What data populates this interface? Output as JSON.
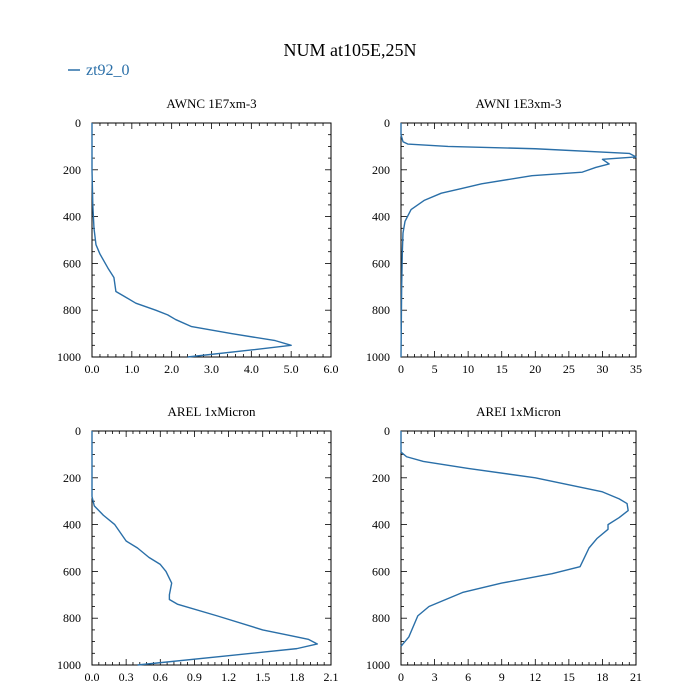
{
  "figure": {
    "title": "NUM at105E,25N",
    "legend_label": "zt92_0",
    "line_color": "#2a6fa8",
    "legend_color": "#2a6fa8"
  },
  "chart_data": [
    {
      "type": "line",
      "title": "AWNC  1E7xm-3",
      "xlabel": "",
      "ylabel": "",
      "xlim": [
        0,
        6
      ],
      "ylim": [
        1000,
        0
      ],
      "y_inverted": true,
      "xticks": [
        0,
        1,
        2,
        3,
        4,
        5,
        6
      ],
      "xtick_labels": [
        "0.0",
        "1.0",
        "2.0",
        "3.0",
        "4.0",
        "5.0",
        "6.0"
      ],
      "yticks": [
        0,
        200,
        400,
        600,
        800,
        1000
      ],
      "ytick_labels": [
        "0",
        "200",
        "400",
        "600",
        "800",
        "1000"
      ],
      "series": [
        {
          "name": "zt92_0",
          "x": [
            0,
            0,
            0.02,
            0.05,
            0.1,
            0.2,
            0.4,
            0.55,
            0.6,
            0.8,
            1.1,
            1.6,
            1.9,
            2.1,
            2.5,
            3.5,
            4.6,
            5.0,
            4.0,
            2.4
          ],
          "y": [
            0,
            200,
            350,
            450,
            520,
            560,
            620,
            660,
            720,
            740,
            770,
            800,
            820,
            840,
            870,
            900,
            930,
            950,
            970,
            1000
          ]
        }
      ]
    },
    {
      "type": "line",
      "title": "AWNI  1E3xm-3",
      "xlabel": "",
      "ylabel": "",
      "xlim": [
        0,
        35
      ],
      "ylim": [
        1000,
        0
      ],
      "y_inverted": true,
      "xticks": [
        0,
        5,
        10,
        15,
        20,
        25,
        30,
        35
      ],
      "xtick_labels": [
        "0",
        "5",
        "10",
        "15",
        "20",
        "25",
        "30",
        "35"
      ],
      "yticks": [
        0,
        200,
        400,
        600,
        800,
        1000
      ],
      "ytick_labels": [
        "0",
        "200",
        "400",
        "600",
        "800",
        "1000"
      ],
      "series": [
        {
          "name": "zt92_0",
          "x": [
            0,
            0,
            0.3,
            1,
            7,
            20,
            34,
            35,
            30,
            31,
            29,
            27,
            19.5,
            12,
            9,
            6,
            3.5,
            1.5,
            0.6,
            0.3,
            0.2,
            0.1,
            0.05,
            0
          ],
          "y": [
            0,
            50,
            80,
            90,
            100,
            110,
            130,
            145,
            155,
            175,
            190,
            210,
            225,
            260,
            280,
            300,
            330,
            370,
            420,
            470,
            550,
            700,
            850,
            1000
          ]
        }
      ]
    },
    {
      "type": "line",
      "title": "AREL  1xMicron",
      "xlabel": "",
      "ylabel": "",
      "xlim": [
        0,
        2.1
      ],
      "ylim": [
        1000,
        0
      ],
      "y_inverted": true,
      "xticks": [
        0,
        0.3,
        0.6,
        0.9,
        1.2,
        1.5,
        1.8,
        2.1
      ],
      "xtick_labels": [
        "0.0",
        "0.3",
        "0.6",
        "0.9",
        "1.2",
        "1.5",
        "1.8",
        "2.1"
      ],
      "yticks": [
        0,
        200,
        400,
        600,
        800,
        1000
      ],
      "ytick_labels": [
        "0",
        "200",
        "400",
        "600",
        "800",
        "1000"
      ],
      "series": [
        {
          "name": "zt92_0",
          "x": [
            0,
            0,
            0.02,
            0.1,
            0.2,
            0.3,
            0.4,
            0.5,
            0.6,
            0.65,
            0.7,
            0.68,
            0.68,
            0.75,
            1.1,
            1.5,
            1.9,
            1.98,
            1.8,
            1.2,
            0.4
          ],
          "y": [
            0,
            280,
            320,
            360,
            400,
            470,
            500,
            540,
            570,
            600,
            650,
            700,
            720,
            740,
            790,
            850,
            890,
            910,
            930,
            960,
            1000
          ]
        }
      ]
    },
    {
      "type": "line",
      "title": "AREI  1xMicron",
      "xlabel": "",
      "ylabel": "",
      "xlim": [
        0,
        21
      ],
      "ylim": [
        1000,
        0
      ],
      "y_inverted": true,
      "xticks": [
        0,
        3,
        6,
        9,
        12,
        15,
        18,
        21
      ],
      "xtick_labels": [
        "0",
        "3",
        "6",
        "9",
        "12",
        "15",
        "18",
        "21"
      ],
      "yticks": [
        0,
        200,
        400,
        600,
        800,
        1000
      ],
      "ytick_labels": [
        "0",
        "200",
        "400",
        "600",
        "800",
        "1000"
      ],
      "series": [
        {
          "name": "zt92_0",
          "x": [
            0,
            0,
            0.5,
            2,
            6,
            12,
            18,
            19.5,
            20.2,
            20.3,
            19.5,
            18.5,
            18.5,
            17.5,
            16.8,
            16.5,
            16,
            13.5,
            9,
            5.5,
            4,
            2.5,
            1.5,
            0.7,
            0
          ],
          "y": [
            0,
            90,
            110,
            130,
            160,
            200,
            260,
            290,
            310,
            340,
            370,
            400,
            420,
            460,
            500,
            530,
            580,
            610,
            650,
            690,
            720,
            750,
            790,
            880,
            920
          ]
        }
      ]
    }
  ]
}
